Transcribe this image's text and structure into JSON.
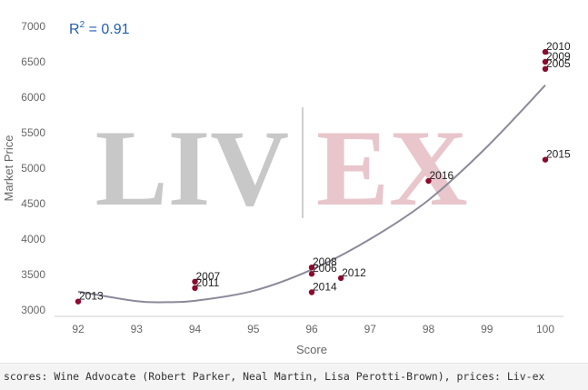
{
  "chart_data": {
    "type": "scatter",
    "title": "",
    "xlabel": "Score",
    "ylabel": "Market Price",
    "xlim": [
      92,
      100
    ],
    "ylim": [
      3000,
      7000
    ],
    "x_ticks": [
      92,
      93,
      94,
      95,
      96,
      97,
      98,
      99,
      100
    ],
    "y_ticks": [
      3000,
      3500,
      4000,
      4500,
      5000,
      5500,
      6000,
      6500,
      7000
    ],
    "points": [
      {
        "label": "2013",
        "x": 92,
        "y": 3120
      },
      {
        "label": "2007",
        "x": 94,
        "y": 3400
      },
      {
        "label": "2011",
        "x": 94,
        "y": 3310
      },
      {
        "label": "2008",
        "x": 96,
        "y": 3600
      },
      {
        "label": "2006",
        "x": 96,
        "y": 3510
      },
      {
        "label": "2014",
        "x": 96,
        "y": 3250
      },
      {
        "label": "2012",
        "x": 96.5,
        "y": 3450
      },
      {
        "label": "2016",
        "x": 98,
        "y": 4820
      },
      {
        "label": "2010",
        "x": 100,
        "y": 6640
      },
      {
        "label": "2009",
        "x": 100,
        "y": 6500
      },
      {
        "label": "2005",
        "x": 100,
        "y": 6400
      },
      {
        "label": "2015",
        "x": 100,
        "y": 5120
      }
    ],
    "trendline": {
      "type": "polynomial",
      "x": [
        92,
        93,
        93.5,
        94,
        95,
        96,
        97,
        98,
        99,
        100
      ],
      "y": [
        3260,
        3125,
        3110,
        3130,
        3270,
        3570,
        4000,
        4550,
        5300,
        6170
      ]
    },
    "r_squared": {
      "prefix": "R",
      "superscript": "2",
      "suffix": " =  0.91"
    },
    "point_color": "#8b0a2e",
    "trendline_color": "#8a8a9a",
    "grid": false,
    "legend": "none"
  },
  "watermark": {
    "left": "LIV",
    "right": "EX",
    "left_color": "#c8c8c8",
    "right_color": "#e8c6cc"
  },
  "footer": {
    "source_text": "scores: Wine Advocate (Robert Parker, Neal Martin, Lisa Perotti-Brown), prices: Liv-ex"
  }
}
